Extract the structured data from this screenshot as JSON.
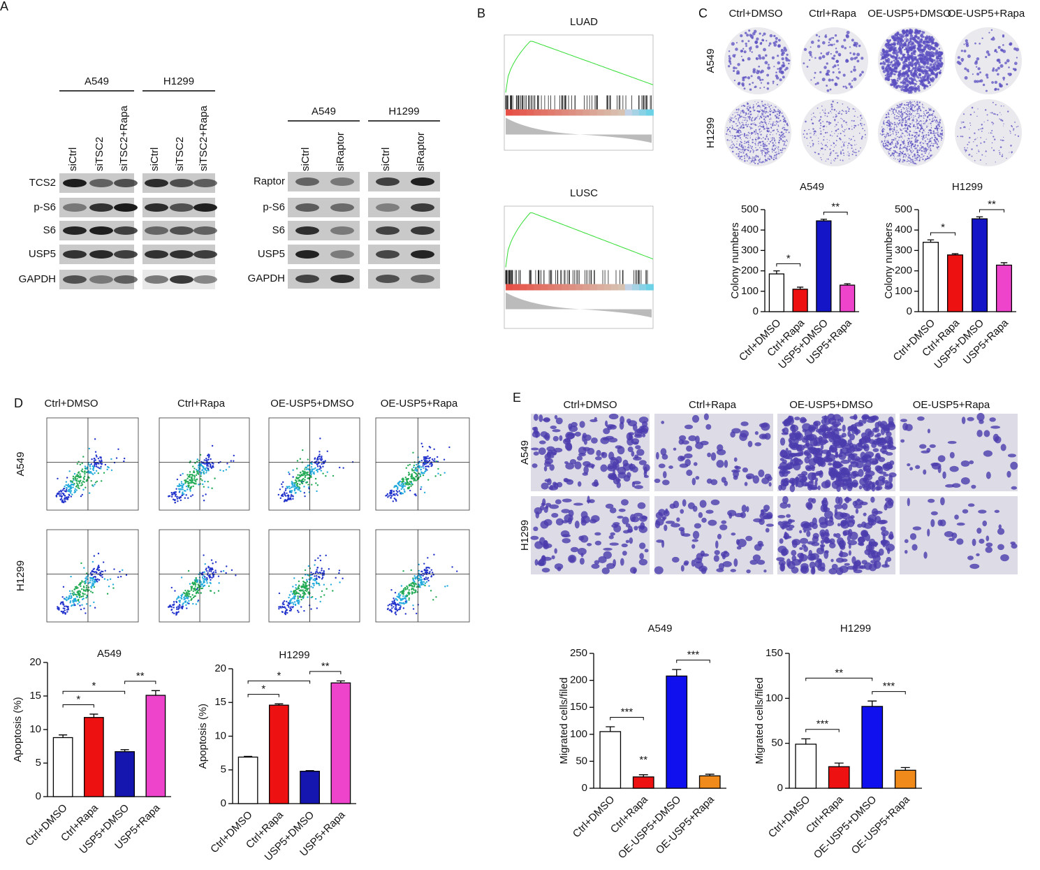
{
  "panels": {
    "A": {
      "label": "A",
      "blot1": {
        "cell_lines": [
          "A549",
          "H1299"
        ],
        "lanes": [
          "siCtrl",
          "siTSC2",
          "siTSC2+Rapa",
          "siCtrl",
          "siTSC2",
          "siTSC2+Rapa"
        ],
        "proteins": [
          "TCS2",
          "p-S6",
          "S6",
          "USP5",
          "GAPDH"
        ]
      },
      "blot2": {
        "cell_lines": [
          "A549",
          "H1299"
        ],
        "lanes": [
          "siCtrl",
          "siRaptor",
          "siCtrl",
          "siRaptor"
        ],
        "proteins": [
          "Raptor",
          "p-S6",
          "S6",
          "USP5",
          "GAPDH"
        ]
      }
    },
    "B": {
      "label": "B",
      "plots": [
        "LUAD",
        "LUSC"
      ]
    },
    "C": {
      "label": "C",
      "columns": [
        "Ctrl+DMSO",
        "Ctrl+Rapa",
        "OE-USP5+DMSO",
        "OE-USP5+Rapa"
      ],
      "rows": [
        "A549",
        "H1299"
      ]
    },
    "D": {
      "label": "D",
      "columns": [
        "Ctrl+DMSO",
        "Ctrl+Rapa",
        "OE-USP5+DMSO",
        "OE-USP5+Rapa"
      ],
      "rows": [
        "A549",
        "H1299"
      ]
    },
    "E": {
      "label": "E",
      "columns": [
        "Ctrl+DMSO",
        "Ctrl+Rapa",
        "OE-USP5+DMSO",
        "OE-USP5+Rapa"
      ],
      "rows": [
        "A549",
        "H1299"
      ]
    }
  },
  "chart_data": [
    {
      "type": "bar",
      "title": "A549",
      "ylabel": "Colony numbers",
      "categories": [
        "Ctrl+DMSO",
        "Ctrl+Rapa",
        "USP5+DMSO",
        "USP5+Rapa"
      ],
      "values": [
        185,
        110,
        445,
        130
      ],
      "errors": [
        15,
        10,
        8,
        7
      ],
      "colors": [
        "#ffffff",
        "#ee1111",
        "#1515c8",
        "#ee44cc"
      ],
      "ylim": [
        0,
        500
      ],
      "yticks": [
        0,
        100,
        200,
        300,
        400,
        500
      ],
      "annotations": [
        {
          "text": "*",
          "between": [
            0,
            1
          ]
        },
        {
          "text": "**",
          "between": [
            2,
            3
          ]
        }
      ]
    },
    {
      "type": "bar",
      "title": "H1299",
      "ylabel": "Colony numbers",
      "categories": [
        "Ctrl+DMSO",
        "Ctrl+Rapa",
        "USP5+DMSO",
        "USP5+Rapa"
      ],
      "values": [
        340,
        278,
        455,
        228
      ],
      "errors": [
        12,
        6,
        10,
        12
      ],
      "colors": [
        "#ffffff",
        "#ee1111",
        "#1515c8",
        "#ee44cc"
      ],
      "ylim": [
        0,
        500
      ],
      "yticks": [
        0,
        100,
        200,
        300,
        400,
        500
      ],
      "annotations": [
        {
          "text": "*",
          "between": [
            0,
            1
          ]
        },
        {
          "text": "**",
          "between": [
            2,
            3
          ]
        }
      ]
    },
    {
      "type": "bar",
      "title": "A549",
      "ylabel": "Apoptosis (%)",
      "categories": [
        "Ctrl+DMSO",
        "Ctrl+Rapa",
        "USP5+DMSO",
        "USP5+Rapa"
      ],
      "values": [
        8.8,
        11.8,
        6.7,
        15.1
      ],
      "errors": [
        0.4,
        0.5,
        0.3,
        0.7
      ],
      "colors": [
        "#ffffff",
        "#ee1111",
        "#1515b0",
        "#ee44cc"
      ],
      "ylim": [
        0,
        20
      ],
      "yticks": [
        0,
        5,
        10,
        15,
        20
      ],
      "annotations": [
        {
          "text": "*",
          "between": [
            0,
            1
          ]
        },
        {
          "text": "*",
          "between": [
            0,
            2
          ]
        },
        {
          "text": "**",
          "between": [
            2,
            3
          ]
        }
      ]
    },
    {
      "type": "bar",
      "title": "H1299",
      "ylabel": "Apoptosis (%)",
      "categories": [
        "Ctrl+DMSO",
        "Ctrl+Rapa",
        "USP5+DMSO",
        "USP5+Rapa"
      ],
      "values": [
        6.9,
        14.6,
        4.8,
        17.9
      ],
      "errors": [
        0.1,
        0.2,
        0.1,
        0.3
      ],
      "colors": [
        "#ffffff",
        "#ee1111",
        "#1515b0",
        "#ee44cc"
      ],
      "ylim": [
        0,
        20
      ],
      "yticks": [
        0,
        5,
        10,
        15,
        20
      ],
      "annotations": [
        {
          "text": "*",
          "between": [
            0,
            1
          ]
        },
        {
          "text": "*",
          "between": [
            0,
            2
          ]
        },
        {
          "text": "**",
          "between": [
            2,
            3
          ]
        }
      ]
    },
    {
      "type": "bar",
      "title": "A549",
      "ylabel": "Migrated cells/filed",
      "categories": [
        "Ctrl+DMSO",
        "Ctrl+Rapa",
        "OE-USP5+DMSO",
        "OE-USP5+Rapa"
      ],
      "values": [
        105,
        21,
        208,
        23
      ],
      "errors": [
        9,
        4,
        12,
        3
      ],
      "colors": [
        "#ffffff",
        "#ee1111",
        "#1010ee",
        "#f08a1a"
      ],
      "ylim": [
        0,
        250
      ],
      "yticks": [
        0,
        50,
        100,
        150,
        200,
        250
      ],
      "annotations": [
        {
          "text": "***",
          "between": [
            0,
            1
          ]
        },
        {
          "text": "**",
          "between": [
            1,
            1
          ]
        },
        {
          "text": "***",
          "between": [
            2,
            3
          ]
        }
      ]
    },
    {
      "type": "bar",
      "title": "H1299",
      "ylabel": "Migrated cells/filed",
      "categories": [
        "Ctrl+DMSO",
        "Ctrl+Rapa",
        "OE-USP5+DMSO",
        "OE-USP5+Rapa"
      ],
      "values": [
        49,
        24,
        91,
        20
      ],
      "errors": [
        6,
        4,
        6,
        3
      ],
      "colors": [
        "#ffffff",
        "#ee1111",
        "#1010ee",
        "#f08a1a"
      ],
      "ylim": [
        0,
        150
      ],
      "yticks": [
        0,
        50,
        100,
        150
      ],
      "annotations": [
        {
          "text": "***",
          "between": [
            0,
            1
          ]
        },
        {
          "text": "**",
          "between": [
            0,
            2
          ]
        },
        {
          "text": "***",
          "between": [
            2,
            3
          ]
        }
      ]
    }
  ]
}
